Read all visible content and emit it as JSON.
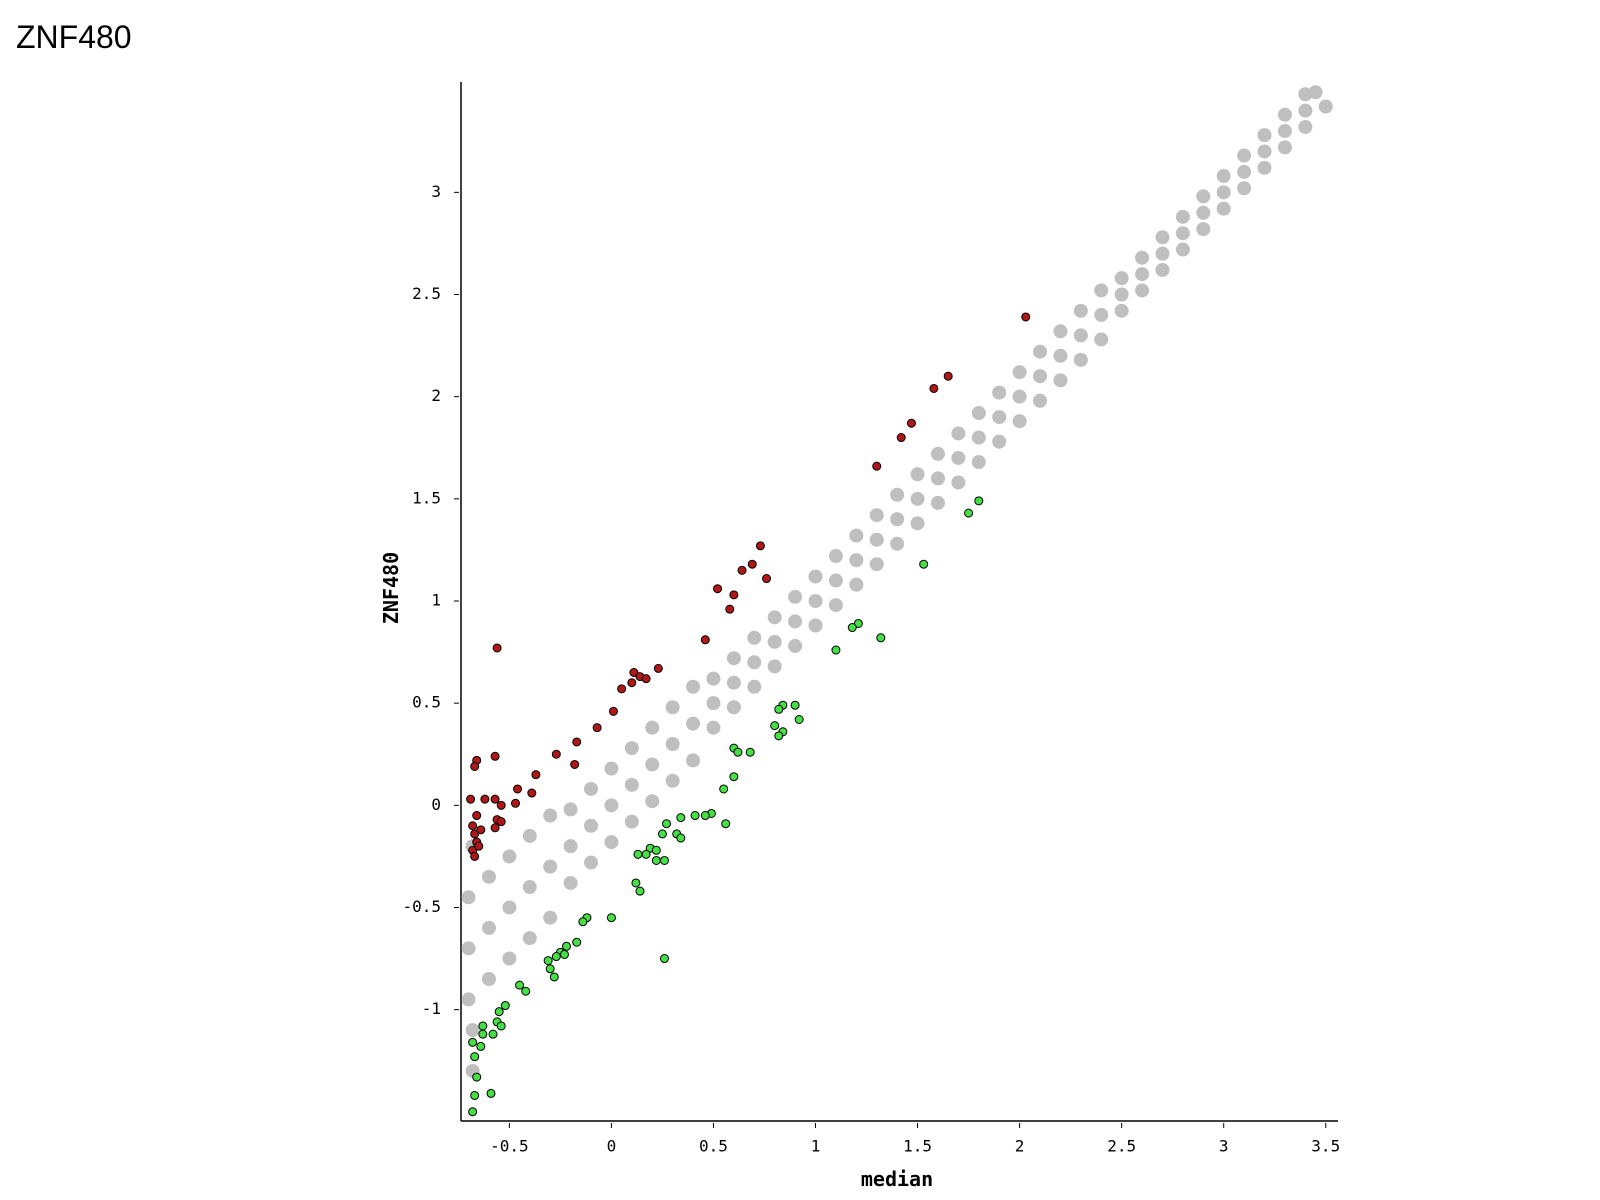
{
  "title": "ZNF480",
  "chart_data": {
    "type": "scatter",
    "x_label": "median",
    "y_label": "ZNF480",
    "xlim": [
      -0.737,
      3.56
    ],
    "ylim": [
      -1.545,
      3.54
    ],
    "xticks": [
      -0.5,
      0,
      0.5,
      1,
      1.5,
      2,
      2.5,
      3,
      3.5
    ],
    "yticks": [
      -1,
      -0.5,
      0,
      0.5,
      1,
      1.5,
      2,
      2.5,
      3
    ],
    "grid": false,
    "series": [
      {
        "color": "#bfbfbf",
        "x": [
          -0.7,
          -0.7,
          -0.7,
          -0.6,
          -0.6,
          -0.6,
          -0.5,
          -0.5,
          -0.5,
          -0.4,
          -0.4,
          -0.4,
          -0.3,
          -0.3,
          -0.3,
          -0.2,
          -0.2,
          -0.2,
          -0.1,
          -0.1,
          -0.1,
          0,
          0,
          0,
          0.1,
          0.1,
          0.1,
          0.2,
          0.2,
          0.2,
          0.3,
          0.3,
          0.3,
          0.4,
          0.4,
          0.4,
          0.5,
          0.5,
          0.5,
          0.6,
          0.6,
          0.6,
          0.7,
          0.7,
          0.7,
          0.8,
          0.8,
          0.8,
          0.9,
          0.9,
          0.9,
          1.0,
          1.0,
          1.0,
          1.1,
          1.1,
          1.1,
          1.2,
          1.2,
          1.2,
          1.3,
          1.3,
          1.3,
          1.4,
          1.4,
          1.4,
          1.5,
          1.5,
          1.5,
          1.6,
          1.6,
          1.6,
          1.7,
          1.7,
          1.7,
          1.8,
          1.8,
          1.8,
          1.9,
          1.9,
          1.9,
          2.0,
          2.0,
          2.0,
          2.1,
          2.1,
          2.1,
          2.2,
          2.2,
          2.2,
          2.3,
          2.3,
          2.3,
          2.4,
          2.4,
          2.4,
          2.5,
          2.5,
          2.5,
          2.6,
          2.6,
          2.6,
          2.7,
          2.7,
          2.7,
          2.8,
          2.8,
          2.8,
          2.9,
          2.9,
          2.9,
          3.0,
          3.0,
          3.0,
          3.1,
          3.1,
          3.1,
          3.2,
          3.2,
          3.2,
          3.3,
          3.3,
          3.3,
          3.4,
          3.4,
          3.4,
          -0.68,
          -0.68,
          -0.68,
          3.45,
          3.5
        ],
        "values": [
          -0.95,
          -0.7,
          -0.45,
          -0.85,
          -0.6,
          -0.35,
          -0.75,
          -0.5,
          -0.25,
          -0.65,
          -0.4,
          -0.15,
          -0.55,
          -0.3,
          -0.05,
          -0.38,
          -0.2,
          -0.02,
          -0.28,
          -0.1,
          0.08,
          -0.18,
          0,
          0.18,
          -0.08,
          0.1,
          0.28,
          0.02,
          0.2,
          0.38,
          0.12,
          0.3,
          0.48,
          0.22,
          0.4,
          0.58,
          0.38,
          0.5,
          0.62,
          0.48,
          0.6,
          0.72,
          0.58,
          0.7,
          0.82,
          0.68,
          0.8,
          0.92,
          0.78,
          0.9,
          1.02,
          0.88,
          1.0,
          1.12,
          0.98,
          1.1,
          1.22,
          1.08,
          1.2,
          1.32,
          1.18,
          1.3,
          1.42,
          1.28,
          1.4,
          1.52,
          1.38,
          1.5,
          1.62,
          1.48,
          1.6,
          1.72,
          1.58,
          1.7,
          1.82,
          1.68,
          1.8,
          1.92,
          1.78,
          1.9,
          2.02,
          1.88,
          2.0,
          2.12,
          1.98,
          2.1,
          2.22,
          2.08,
          2.2,
          2.32,
          2.18,
          2.3,
          2.42,
          2.28,
          2.4,
          2.52,
          2.42,
          2.5,
          2.58,
          2.52,
          2.6,
          2.68,
          2.62,
          2.7,
          2.78,
          2.72,
          2.8,
          2.88,
          2.82,
          2.9,
          2.98,
          2.92,
          3.0,
          3.08,
          3.02,
          3.1,
          3.18,
          3.12,
          3.2,
          3.28,
          3.22,
          3.3,
          3.38,
          3.32,
          3.4,
          3.48,
          -1.3,
          -1.1,
          -0.2,
          3.49,
          3.42
        ]
      },
      {
        "color": "#b01818",
        "edgecolor": "#000000",
        "x": [
          -0.56,
          2.03,
          1.65,
          1.58,
          1.47,
          1.42,
          1.3,
          0.73,
          0.69,
          0.64,
          0.76,
          0.52,
          0.6,
          0.58,
          0.46,
          0.23,
          0.11,
          0.14,
          0.17,
          0.1,
          0.05,
          0.01,
          -0.07,
          -0.17,
          -0.27,
          -0.18,
          -0.37,
          -0.57,
          -0.66,
          -0.67,
          -0.46,
          -0.39,
          -0.47,
          -0.54,
          -0.57,
          -0.62,
          -0.69,
          -0.56,
          -0.54,
          -0.57,
          -0.68,
          -0.67,
          -0.66,
          -0.68,
          -0.67,
          -0.65,
          -0.64,
          -0.66
        ],
        "values": [
          0.77,
          2.39,
          2.1,
          2.04,
          1.87,
          1.8,
          1.66,
          1.27,
          1.18,
          1.15,
          1.11,
          1.06,
          1.03,
          0.96,
          0.81,
          0.67,
          0.65,
          0.63,
          0.62,
          0.6,
          0.57,
          0.46,
          0.38,
          0.31,
          0.25,
          0.2,
          0.15,
          0.24,
          0.22,
          0.19,
          0.08,
          0.06,
          0.01,
          0.0,
          0.03,
          0.03,
          0.03,
          -0.07,
          -0.08,
          -0.11,
          -0.1,
          -0.14,
          -0.18,
          -0.22,
          -0.25,
          -0.2,
          -0.12,
          -0.05
        ]
      },
      {
        "color": "#44e044",
        "edgecolor": "#000000",
        "x": [
          1.53,
          1.8,
          1.75,
          1.32,
          1.21,
          1.18,
          1.1,
          0.9,
          0.84,
          0.82,
          0.92,
          0.8,
          0.84,
          0.82,
          0.6,
          0.62,
          0.68,
          0.6,
          0.55,
          0.49,
          0.46,
          0.41,
          0.34,
          0.27,
          0.56,
          0.32,
          0.34,
          0.25,
          0.19,
          0.22,
          0.13,
          0.17,
          0.22,
          0.26,
          0.12,
          0.14,
          0.0,
          -0.12,
          -0.14,
          0.26,
          -0.17,
          -0.22,
          -0.25,
          -0.23,
          -0.27,
          -0.31,
          -0.3,
          -0.28,
          -0.45,
          -0.42,
          -0.52,
          -0.55,
          -0.56,
          -0.54,
          -0.58,
          -0.63,
          -0.63,
          -0.64,
          -0.67,
          -0.66,
          -0.67,
          -0.59,
          -0.68,
          -0.68
        ],
        "values": [
          1.18,
          1.49,
          1.43,
          0.82,
          0.89,
          0.87,
          0.76,
          0.49,
          0.49,
          0.47,
          0.42,
          0.39,
          0.36,
          0.34,
          0.28,
          0.26,
          0.26,
          0.14,
          0.08,
          -0.04,
          -0.05,
          -0.05,
          -0.06,
          -0.09,
          -0.09,
          -0.14,
          -0.16,
          -0.14,
          -0.21,
          -0.22,
          -0.24,
          -0.24,
          -0.27,
          -0.27,
          -0.38,
          -0.42,
          -0.55,
          -0.55,
          -0.57,
          -0.75,
          -0.67,
          -0.69,
          -0.72,
          -0.73,
          -0.74,
          -0.76,
          -0.8,
          -0.84,
          -0.88,
          -0.91,
          -0.98,
          -1.01,
          -1.06,
          -1.08,
          -1.12,
          -1.08,
          -1.12,
          -1.18,
          -1.23,
          -1.33,
          -1.42,
          -1.41,
          -1.5,
          -1.16
        ]
      }
    ]
  }
}
